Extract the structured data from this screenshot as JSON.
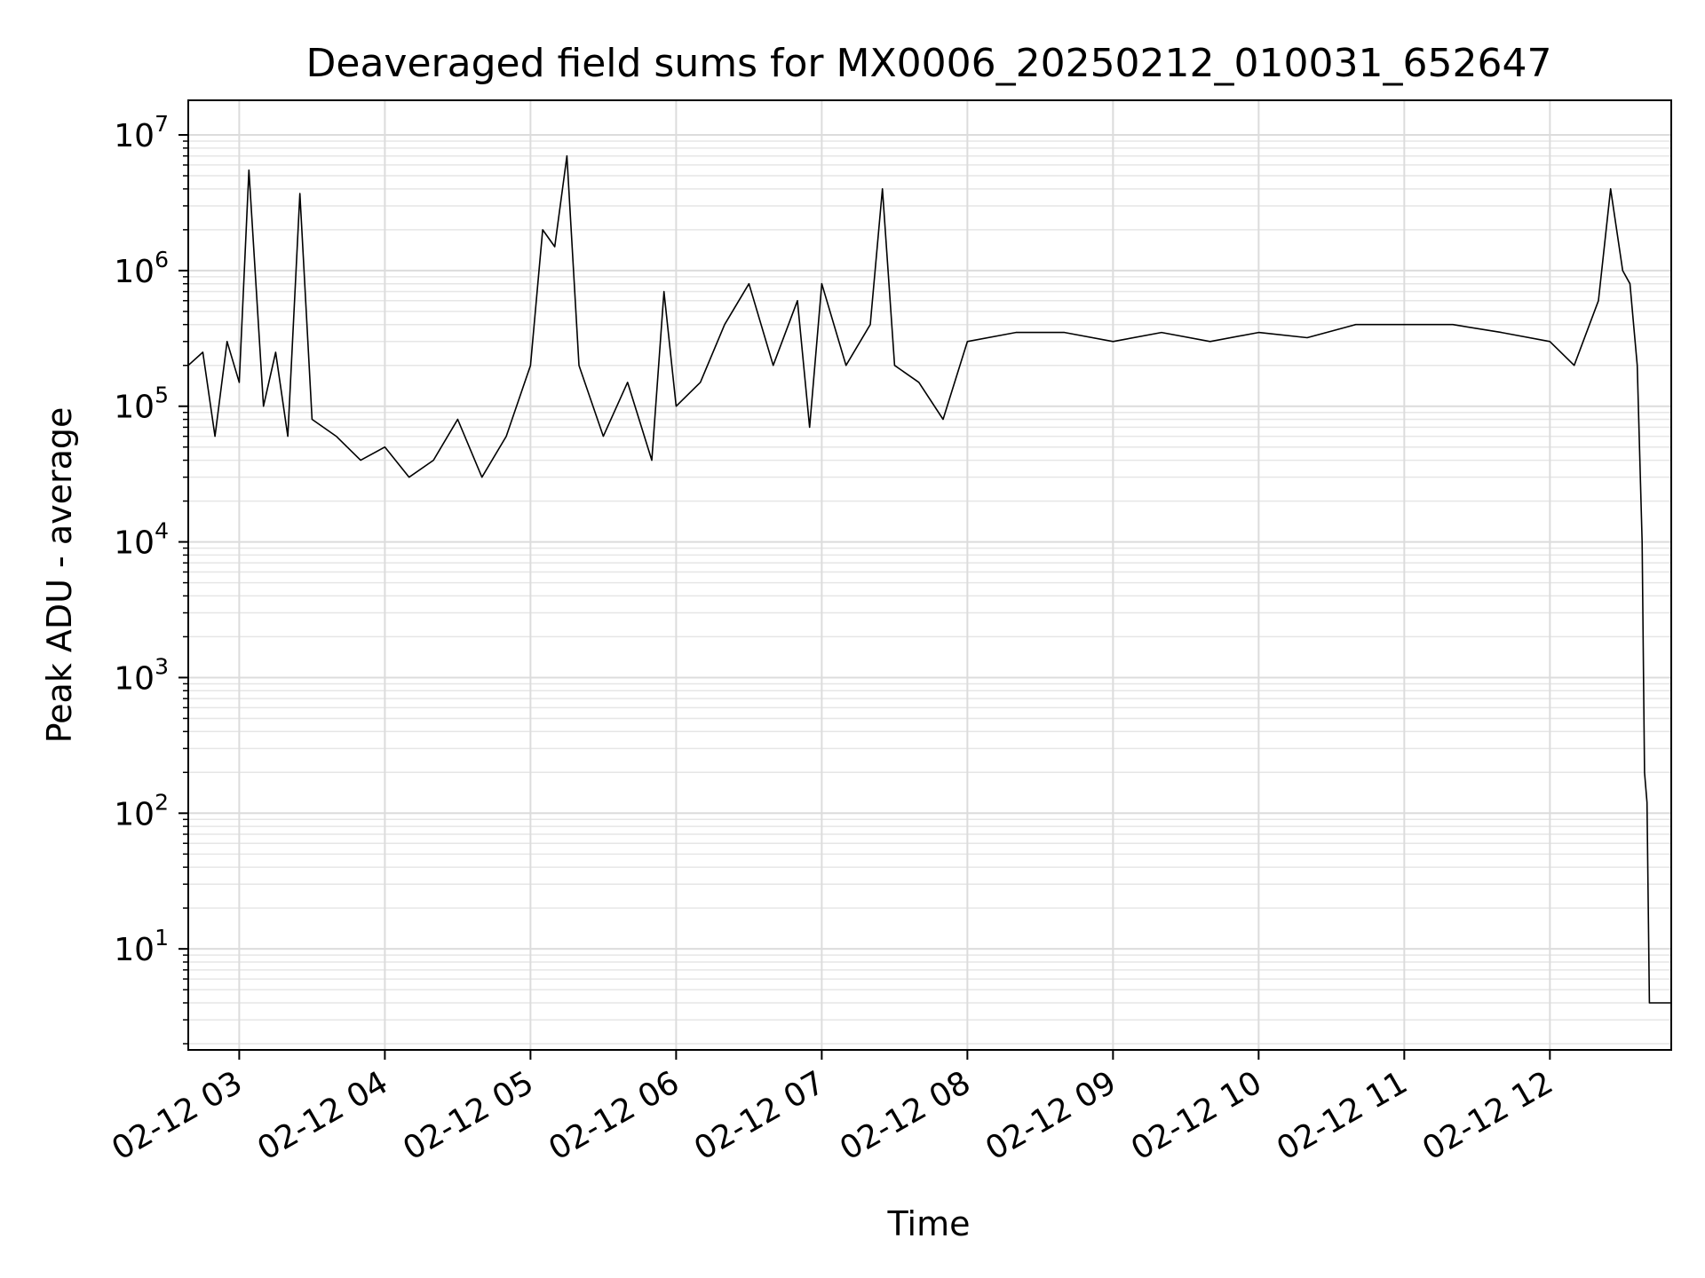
{
  "chart_data": {
    "type": "line",
    "title": "Deaveraged field sums for MX0006_20250212_010031_652647",
    "xlabel": "Time",
    "ylabel": "Peak ADU - average",
    "yscale": "log",
    "ylim": [
      1.8,
      18000000
    ],
    "xlim": [
      "2025-02-12 02:39",
      "2025-02-12 12:50"
    ],
    "grid": true,
    "x_ticks": [
      {
        "value": "2025-02-12 03:00",
        "label": "02-12 03"
      },
      {
        "value": "2025-02-12 04:00",
        "label": "02-12 04"
      },
      {
        "value": "2025-02-12 05:00",
        "label": "02-12 05"
      },
      {
        "value": "2025-02-12 06:00",
        "label": "02-12 06"
      },
      {
        "value": "2025-02-12 07:00",
        "label": "02-12 07"
      },
      {
        "value": "2025-02-12 08:00",
        "label": "02-12 08"
      },
      {
        "value": "2025-02-12 09:00",
        "label": "02-12 09"
      },
      {
        "value": "2025-02-12 10:00",
        "label": "02-12 10"
      },
      {
        "value": "2025-02-12 11:00",
        "label": "02-12 11"
      },
      {
        "value": "2025-02-12 12:00",
        "label": "02-12 12"
      }
    ],
    "y_ticks": [
      {
        "value": 10,
        "base": "10",
        "exp": "1"
      },
      {
        "value": 100,
        "base": "10",
        "exp": "2"
      },
      {
        "value": 1000,
        "base": "10",
        "exp": "3"
      },
      {
        "value": 10000,
        "base": "10",
        "exp": "4"
      },
      {
        "value": 100000,
        "base": "10",
        "exp": "5"
      },
      {
        "value": 1000000,
        "base": "10",
        "exp": "6"
      },
      {
        "value": 10000000,
        "base": "10",
        "exp": "7"
      }
    ],
    "series": [
      {
        "color": "#000000",
        "x": [
          "2025-02-12 02:39",
          "2025-02-12 02:45",
          "2025-02-12 02:50",
          "2025-02-12 02:55",
          "2025-02-12 03:00",
          "2025-02-12 03:04",
          "2025-02-12 03:10",
          "2025-02-12 03:15",
          "2025-02-12 03:20",
          "2025-02-12 03:25",
          "2025-02-12 03:30",
          "2025-02-12 03:40",
          "2025-02-12 03:50",
          "2025-02-12 04:00",
          "2025-02-12 04:10",
          "2025-02-12 04:20",
          "2025-02-12 04:30",
          "2025-02-12 04:40",
          "2025-02-12 04:50",
          "2025-02-12 05:00",
          "2025-02-12 05:05",
          "2025-02-12 05:10",
          "2025-02-12 05:15",
          "2025-02-12 05:20",
          "2025-02-12 05:30",
          "2025-02-12 05:40",
          "2025-02-12 05:50",
          "2025-02-12 05:55",
          "2025-02-12 06:00",
          "2025-02-12 06:10",
          "2025-02-12 06:20",
          "2025-02-12 06:30",
          "2025-02-12 06:40",
          "2025-02-12 06:50",
          "2025-02-12 06:55",
          "2025-02-12 07:00",
          "2025-02-12 07:10",
          "2025-02-12 07:20",
          "2025-02-12 07:25",
          "2025-02-12 07:30",
          "2025-02-12 07:40",
          "2025-02-12 07:50",
          "2025-02-12 08:00",
          "2025-02-12 08:20",
          "2025-02-12 08:40",
          "2025-02-12 09:00",
          "2025-02-12 09:20",
          "2025-02-12 09:40",
          "2025-02-12 10:00",
          "2025-02-12 10:20",
          "2025-02-12 10:40",
          "2025-02-12 11:00",
          "2025-02-12 11:20",
          "2025-02-12 11:40",
          "2025-02-12 12:00",
          "2025-02-12 12:10",
          "2025-02-12 12:20",
          "2025-02-12 12:25",
          "2025-02-12 12:30",
          "2025-02-12 12:33",
          "2025-02-12 12:36",
          "2025-02-12 12:38",
          "2025-02-12 12:39",
          "2025-02-12 12:40",
          "2025-02-12 12:41",
          "2025-02-12 12:45",
          "2025-02-12 12:50"
        ],
        "y": [
          200000,
          250000,
          60000,
          300000,
          150000,
          5500000,
          100000,
          250000,
          60000,
          3700000,
          80000,
          60000,
          40000,
          50000,
          30000,
          40000,
          80000,
          30000,
          60000,
          200000,
          2000000,
          1500000,
          7000000,
          200000,
          60000,
          150000,
          40000,
          700000,
          100000,
          150000,
          400000,
          800000,
          200000,
          600000,
          70000,
          800000,
          200000,
          400000,
          4000000,
          200000,
          150000,
          80000,
          300000,
          350000,
          350000,
          300000,
          350000,
          300000,
          350000,
          320000,
          400000,
          400000,
          400000,
          350000,
          300000,
          200000,
          600000,
          4000000,
          1000000,
          800000,
          200000,
          10000,
          200,
          120,
          4,
          4,
          4
        ]
      }
    ]
  }
}
